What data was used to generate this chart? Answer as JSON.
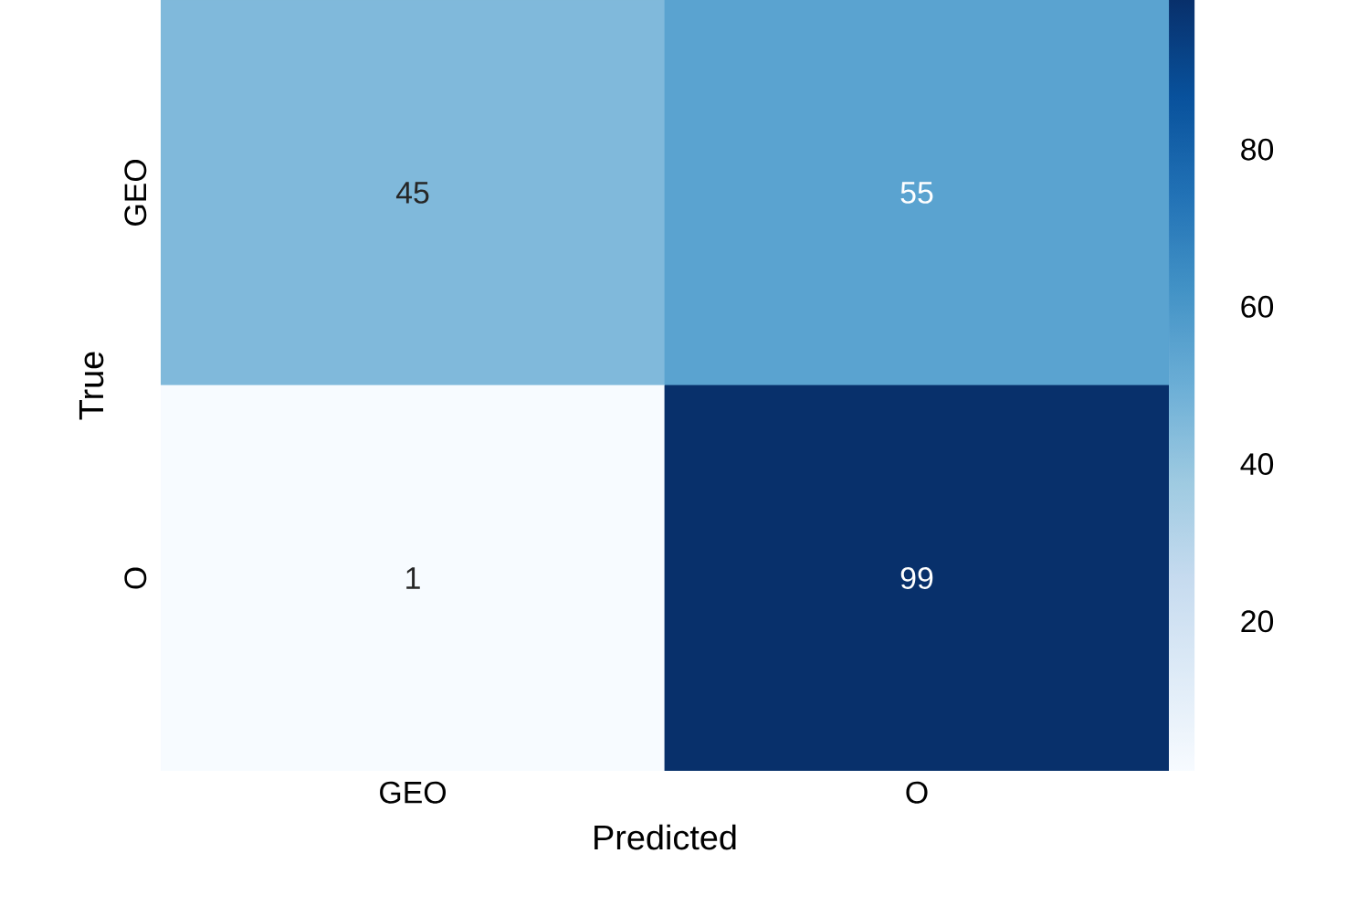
{
  "chart_data": {
    "type": "heatmap",
    "xlabel": "Predicted",
    "ylabel": "True",
    "categories": [
      "GEO",
      "O"
    ],
    "y_categories": [
      "GEO",
      "O"
    ],
    "cells": [
      [
        45,
        55
      ],
      [
        1,
        99
      ]
    ],
    "clim": [
      1,
      99
    ],
    "cticks": [
      20,
      40,
      60,
      80
    ],
    "data_labels": true
  }
}
